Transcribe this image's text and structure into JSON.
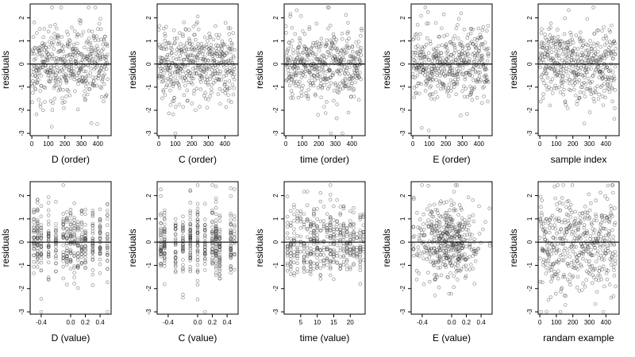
{
  "figure": {
    "ylabel": "residuals",
    "ylim": [
      -3.1,
      2.6
    ],
    "yticks": [
      -3,
      -2,
      -1,
      0,
      1,
      2
    ],
    "ytick_labels": [
      "-3",
      "-2",
      "-1",
      "0",
      "1",
      "2"
    ]
  },
  "chart_data": [
    {
      "type": "scatter",
      "xlabel": "D (order)",
      "ylabel": "residuals",
      "xlim": [
        -10,
        480
      ],
      "xticks": [
        0,
        100,
        200,
        300,
        400
      ],
      "xtick_labels": [
        "0",
        "100",
        "200",
        "300",
        "400"
      ],
      "generator": {
        "kind": "order",
        "n": 460,
        "seed": 11
      }
    },
    {
      "type": "scatter",
      "xlabel": "C (order)",
      "ylabel": "residuals",
      "xlim": [
        -10,
        480
      ],
      "xticks": [
        0,
        100,
        200,
        300,
        400
      ],
      "xtick_labels": [
        "0",
        "100",
        "200",
        "300",
        "400"
      ],
      "generator": {
        "kind": "order",
        "n": 460,
        "seed": 23
      }
    },
    {
      "type": "scatter",
      "xlabel": "time (order)",
      "ylabel": "residuals",
      "xlim": [
        -10,
        480
      ],
      "xticks": [
        0,
        100,
        200,
        300,
        400
      ],
      "xtick_labels": [
        "0",
        "100",
        "200",
        "300",
        "400"
      ],
      "generator": {
        "kind": "order",
        "n": 460,
        "seed": 37
      }
    },
    {
      "type": "scatter",
      "xlabel": "E (order)",
      "ylabel": "residuals",
      "xlim": [
        -10,
        480
      ],
      "xticks": [
        0,
        100,
        200,
        300,
        400
      ],
      "xtick_labels": [
        "0",
        "100",
        "200",
        "300",
        "400"
      ],
      "generator": {
        "kind": "order",
        "n": 460,
        "seed": 41
      }
    },
    {
      "type": "scatter",
      "xlabel": "sample index",
      "ylabel": "residuals",
      "xlim": [
        -10,
        480
      ],
      "xticks": [
        0,
        100,
        200,
        300,
        400
      ],
      "xtick_labels": [
        "0",
        "100",
        "200",
        "300",
        "400"
      ],
      "generator": {
        "kind": "order",
        "n": 460,
        "seed": 53
      }
    },
    {
      "type": "scatter",
      "xlabel": "D (value)",
      "ylabel": "residuals",
      "xlim": [
        -0.55,
        0.55
      ],
      "xticks": [
        -0.4,
        0,
        0.2,
        0.4
      ],
      "xtick_labels": [
        "-0.4",
        "0.0",
        "0.2",
        "0.4"
      ],
      "generator": {
        "kind": "value",
        "n": 460,
        "seed": 61,
        "levels": [
          -0.5,
          -0.45,
          -0.4,
          -0.3,
          -0.2,
          -0.1,
          -0.05,
          0,
          0.05,
          0.1,
          0.15,
          0.2,
          0.3,
          0.4,
          0.5
        ]
      }
    },
    {
      "type": "scatter",
      "xlabel": "C (value)",
      "ylabel": "residuals",
      "xlim": [
        -0.55,
        0.55
      ],
      "xticks": [
        -0.4,
        0,
        0.2,
        0.4
      ],
      "xtick_labels": [
        "-0.4",
        "0.0",
        "0.2",
        "0.4"
      ],
      "generator": {
        "kind": "value",
        "n": 460,
        "seed": 71,
        "levels": [
          -0.5,
          -0.45,
          -0.3,
          -0.2,
          -0.1,
          0,
          0.1,
          0.2,
          0.25,
          0.3,
          0.45,
          0.5
        ]
      }
    },
    {
      "type": "scatter",
      "xlabel": "time (value)",
      "ylabel": "residuals",
      "xlim": [
        0,
        24.5
      ],
      "xticks": [
        5,
        10,
        15,
        20
      ],
      "xtick_labels": [
        "5",
        "10",
        "15",
        "20"
      ],
      "generator": {
        "kind": "value",
        "n": 460,
        "seed": 83,
        "levels": [
          1,
          2,
          3,
          4,
          5,
          6,
          7,
          8,
          9,
          10,
          11,
          12,
          13,
          14,
          15,
          16,
          17,
          18,
          19,
          20,
          21,
          22,
          23,
          24
        ]
      }
    },
    {
      "type": "scatter",
      "xlabel": "E (value)",
      "ylabel": "residuals",
      "xlim": [
        -0.55,
        0.55
      ],
      "xticks": [
        -0.4,
        0,
        0.2,
        0.4
      ],
      "xtick_labels": [
        "-0.4",
        "0.0",
        "0.2",
        "0.4"
      ],
      "generator": {
        "kind": "continuous",
        "n": 460,
        "seed": 97,
        "center": -0.05,
        "spread": 0.22
      }
    },
    {
      "type": "scatter",
      "xlabel": "randam example",
      "ylabel": "residuals",
      "xlim": [
        -10,
        480
      ],
      "xticks": [
        0,
        100,
        200,
        300,
        400
      ],
      "xtick_labels": [
        "0",
        "100",
        "200",
        "300",
        "400"
      ],
      "generator": {
        "kind": "order",
        "n": 460,
        "seed": 101,
        "sd": 1.0
      }
    }
  ]
}
